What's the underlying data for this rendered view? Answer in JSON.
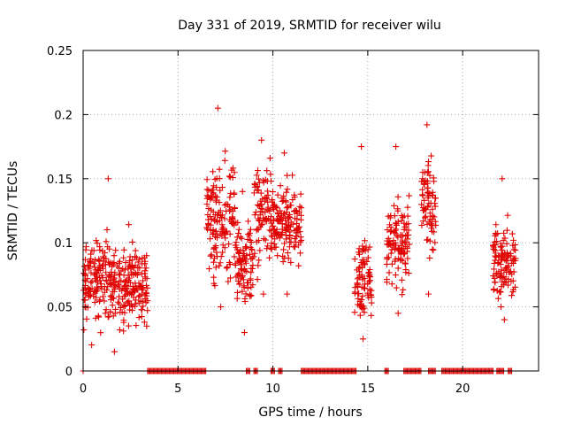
{
  "chart_data": {
    "type": "scatter",
    "title": "Day 331 of 2019, SRMTID for receiver wilu",
    "xlabel": "GPS time / hours",
    "ylabel": "SRMTID / TECUs",
    "xlim": [
      0,
      24
    ],
    "ylim": [
      0,
      0.25
    ],
    "xticks": [
      0,
      5,
      10,
      15,
      20
    ],
    "xtick_labels": [
      "0",
      "5",
      "10",
      "15",
      "20"
    ],
    "yticks": [
      0,
      0.05,
      0.1,
      0.15,
      0.2,
      0.25
    ],
    "ytick_labels": [
      "0",
      "0.05",
      "0.1",
      "0.15",
      "0.2",
      "0.25"
    ],
    "grid": true,
    "marker": "+",
    "color": "#e00000",
    "clusters": [
      {
        "x_start": 0.0,
        "x_end": 3.3,
        "y_center": 0.07,
        "y_spread": 0.03,
        "min_y": 0.015,
        "max_y": 0.15
      },
      {
        "x_start": 3.3,
        "x_end": 3.4,
        "y_center": 0.06,
        "y_spread": 0.015,
        "min_y": 0.035,
        "max_y": 0.09
      },
      {
        "x_start": 6.5,
        "x_end": 8.0,
        "y_center": 0.12,
        "y_spread": 0.04,
        "min_y": 0.05,
        "max_y": 0.205
      },
      {
        "x_start": 8.0,
        "x_end": 9.0,
        "y_center": 0.085,
        "y_spread": 0.03,
        "min_y": 0.03,
        "max_y": 0.14
      },
      {
        "x_start": 9.0,
        "x_end": 10.0,
        "y_center": 0.12,
        "y_spread": 0.035,
        "min_y": 0.06,
        "max_y": 0.18
      },
      {
        "x_start": 10.0,
        "x_end": 11.5,
        "y_center": 0.115,
        "y_spread": 0.025,
        "min_y": 0.06,
        "max_y": 0.17
      },
      {
        "x_start": 14.3,
        "x_end": 15.2,
        "y_center": 0.07,
        "y_spread": 0.03,
        "min_y": 0.025,
        "max_y": 0.175
      },
      {
        "x_start": 16.0,
        "x_end": 17.2,
        "y_center": 0.1,
        "y_spread": 0.03,
        "min_y": 0.045,
        "max_y": 0.175
      },
      {
        "x_start": 17.8,
        "x_end": 18.6,
        "y_center": 0.13,
        "y_spread": 0.035,
        "min_y": 0.06,
        "max_y": 0.192
      },
      {
        "x_start": 21.6,
        "x_end": 22.8,
        "y_center": 0.085,
        "y_spread": 0.025,
        "min_y": 0.04,
        "max_y": 0.15
      }
    ],
    "zero_segments": [
      [
        3.4,
        6.5
      ],
      [
        8.6,
        8.8
      ],
      [
        9.0,
        9.2
      ],
      [
        9.9,
        10.1
      ],
      [
        10.3,
        10.5
      ],
      [
        11.5,
        14.4
      ],
      [
        15.9,
        16.1
      ],
      [
        16.9,
        17.8
      ],
      [
        18.2,
        18.6
      ],
      [
        18.9,
        21.6
      ],
      [
        21.8,
        22.2
      ],
      [
        22.4,
        22.6
      ]
    ]
  }
}
